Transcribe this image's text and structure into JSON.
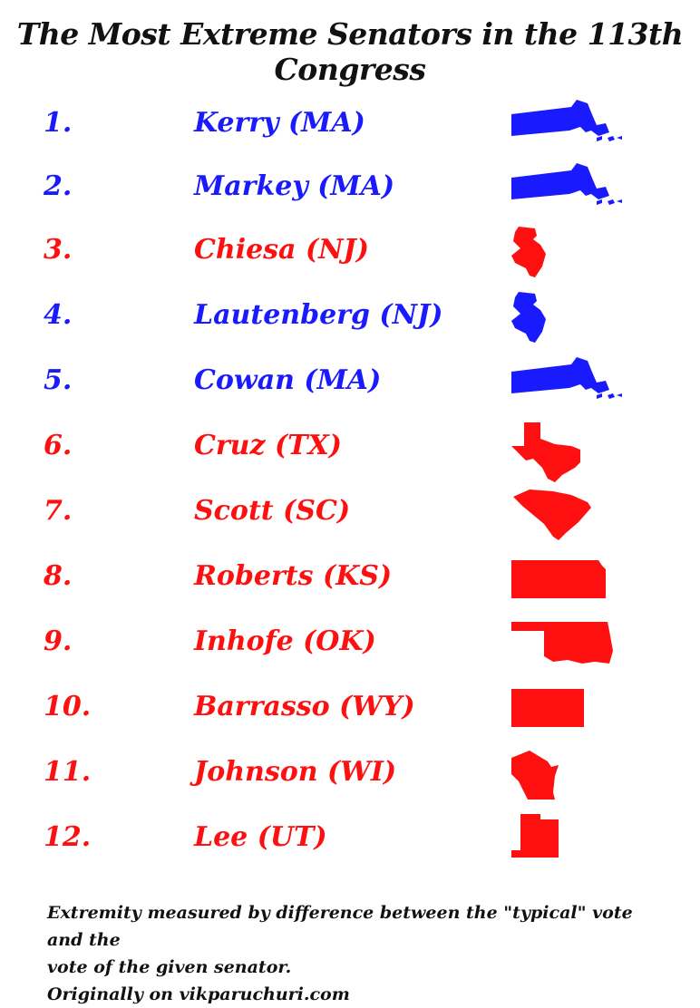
{
  "title": "The Most Extreme Senators in the 113th Congress",
  "colors": {
    "democrat": "#1a1aff",
    "republican": "#ff1010"
  },
  "senators": [
    {
      "rank": "1.",
      "name": "Kerry (MA)",
      "party_color": "#1a1aff",
      "state_icon": "massachusetts-shape"
    },
    {
      "rank": "2.",
      "name": "Markey (MA)",
      "party_color": "#1a1aff",
      "state_icon": "massachusetts-shape"
    },
    {
      "rank": "3.",
      "name": "Chiesa (NJ)",
      "party_color": "#ff1010",
      "state_icon": "new-jersey-shape"
    },
    {
      "rank": "4.",
      "name": "Lautenberg (NJ)",
      "party_color": "#1a1aff",
      "state_icon": "new-jersey-shape"
    },
    {
      "rank": "5.",
      "name": "Cowan (MA)",
      "party_color": "#1a1aff",
      "state_icon": "massachusetts-shape"
    },
    {
      "rank": "6.",
      "name": "Cruz (TX)",
      "party_color": "#ff1010",
      "state_icon": "texas-shape"
    },
    {
      "rank": "7.",
      "name": "Scott (SC)",
      "party_color": "#ff1010",
      "state_icon": "south-carolina-shape"
    },
    {
      "rank": "8.",
      "name": "Roberts (KS)",
      "party_color": "#ff1010",
      "state_icon": "kansas-shape"
    },
    {
      "rank": "9.",
      "name": "Inhofe (OK)",
      "party_color": "#ff1010",
      "state_icon": "oklahoma-shape"
    },
    {
      "rank": "10.",
      "name": "Barrasso (WY)",
      "party_color": "#ff1010",
      "state_icon": "wyoming-shape"
    },
    {
      "rank": "11.",
      "name": "Johnson (WI)",
      "party_color": "#ff1010",
      "state_icon": "wisconsin-shape"
    },
    {
      "rank": "12.",
      "name": "Lee (UT)",
      "party_color": "#ff1010",
      "state_icon": "utah-shape"
    }
  ],
  "footnote": {
    "line1": "Extremity measured by difference between the \"typical\" vote and the",
    "line2": "vote of the given senator.",
    "line3": "Originally on vikparuchuri.com"
  }
}
